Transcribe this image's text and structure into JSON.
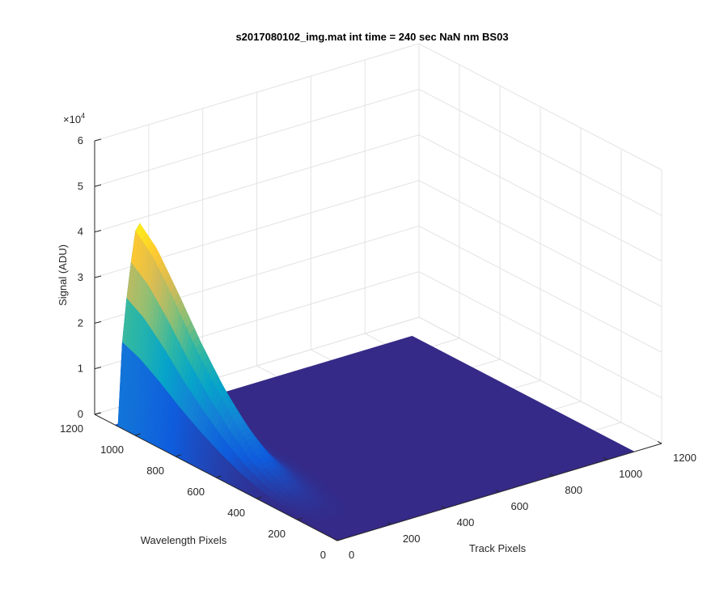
{
  "chart_data": {
    "type": "surface",
    "title": "s2017080102_img.mat int time = 240 sec  NaN nm BS03",
    "xlabel": "Track Pixels",
    "ylabel": "Wavelength Pixels",
    "zlabel": "Signal (ADU)",
    "z_exponent_label": "×10",
    "z_exponent": "4",
    "xlim": [
      0,
      1200
    ],
    "ylim": [
      0,
      1200
    ],
    "zlim": [
      0,
      60000
    ],
    "x_ticks": [
      "0",
      "200",
      "400",
      "600",
      "800",
      "1000",
      "1200"
    ],
    "y_ticks": [
      "0",
      "200",
      "400",
      "600",
      "800",
      "1000",
      "1200"
    ],
    "z_ticks": [
      "0",
      "1",
      "2",
      "3",
      "4",
      "5",
      "6"
    ],
    "grid": true,
    "colormap": "parula",
    "colormap_colors": [
      "#352a87",
      "#0f5cdd",
      "#1481d6",
      "#06a4ca",
      "#2eb7a4",
      "#87bf77",
      "#d1bb59",
      "#fec832",
      "#f9fb0e"
    ],
    "baseline_color": "#352a87",
    "surface": {
      "data_extent_track_pixels": [
        0,
        1100
      ],
      "data_extent_wavelength_pixels": [
        0,
        1100
      ],
      "peak_signal": 44000,
      "peak_track_pixel": 70,
      "peak_wavelength_pixel": 1090,
      "profile_along_wavelength": [
        {
          "wavelength_pixel": 1100,
          "signal": 0
        },
        {
          "wavelength_pixel": 1090,
          "signal": 44000
        },
        {
          "wavelength_pixel": 1000,
          "signal": 40000
        },
        {
          "wavelength_pixel": 900,
          "signal": 33000
        },
        {
          "wavelength_pixel": 800,
          "signal": 25000
        },
        {
          "wavelength_pixel": 700,
          "signal": 18000
        },
        {
          "wavelength_pixel": 600,
          "signal": 12000
        },
        {
          "wavelength_pixel": 500,
          "signal": 7000
        },
        {
          "wavelength_pixel": 400,
          "signal": 3500
        },
        {
          "wavelength_pixel": 300,
          "signal": 1500
        },
        {
          "wavelength_pixel": 200,
          "signal": 500
        },
        {
          "wavelength_pixel": 100,
          "signal": 0
        }
      ]
    }
  }
}
